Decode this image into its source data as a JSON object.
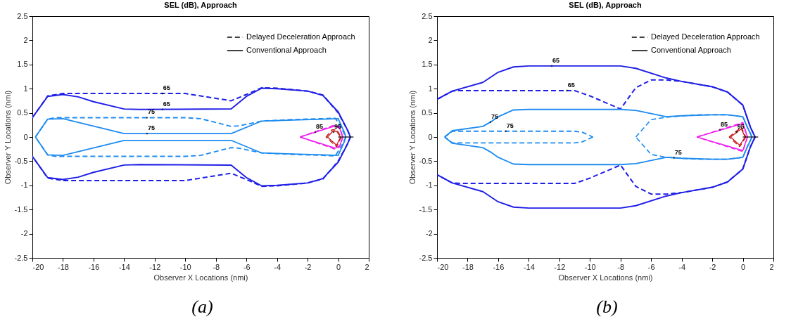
{
  "chart_data": [
    {
      "type": "line",
      "title": "SEL (dB), Approach",
      "xlabel": "Observer X Locations (nmi)",
      "ylabel": "Observer Y Locations (nmi)",
      "xlim": [
        -20,
        2
      ],
      "ylim": [
        -2.5,
        2.5
      ],
      "xticks": [
        -20,
        -18,
        -16,
        -14,
        -12,
        -10,
        -8,
        -6,
        -4,
        -2,
        0,
        2
      ],
      "yticks": [
        -2.5,
        -2,
        -1.5,
        -1,
        -0.5,
        0,
        0.5,
        1,
        1.5,
        2,
        2.5
      ],
      "grid": false,
      "legend": "top right",
      "series": [
        {
          "name": "Delayed Deceleration Approach",
          "color": "#1f1fe6",
          "line_style": "dashed",
          "x": [
            -20,
            -19,
            -18,
            -12,
            -10,
            -9,
            -7,
            -6,
            -5,
            -4,
            -2,
            -1,
            0,
            0.6,
            0.8,
            0.6,
            0,
            -1,
            -2,
            -4,
            -5,
            -6,
            -7,
            -9,
            -10,
            -12,
            -18,
            -19,
            -20
          ],
          "values": [
            0.4,
            0.85,
            0.9,
            0.9,
            0.9,
            0.85,
            0.75,
            0.88,
            1.02,
            1.01,
            0.95,
            0.87,
            0.5,
            0.15,
            0,
            -0.15,
            -0.5,
            -0.87,
            -0.95,
            -1.01,
            -1.02,
            -0.88,
            -0.75,
            -0.85,
            -0.9,
            -0.9,
            -0.9,
            -0.85,
            -0.4
          ]
        },
        {
          "name": "Conventional Approach",
          "color": "#1f1fe6",
          "line_style": "solid",
          "x": [
            -20,
            -19,
            -18,
            -17,
            -16,
            -14,
            -13,
            -7,
            -6,
            -5,
            -4,
            -2,
            -1,
            0,
            0.6,
            0.8,
            0.6,
            0,
            -1,
            -2,
            -4,
            -5,
            -6,
            -7,
            -13,
            -14,
            -16,
            -17,
            -18,
            -19,
            -20
          ],
          "values": [
            0.4,
            0.84,
            0.88,
            0.83,
            0.73,
            0.58,
            0.57,
            0.58,
            0.84,
            1.01,
            1,
            0.95,
            0.86,
            0.52,
            0.15,
            0,
            -0.15,
            -0.52,
            -0.86,
            -0.95,
            -1,
            -1.01,
            -0.84,
            -0.58,
            -0.57,
            -0.58,
            -0.73,
            -0.83,
            -0.88,
            -0.84,
            -0.4
          ]
        },
        {
          "color": "#1e8cf0",
          "line_style": "dashed",
          "x": [
            -19.8,
            -19,
            -18.5,
            -10,
            -9,
            -8,
            -7,
            -6.5,
            -5,
            -3,
            -1,
            -0.2,
            0.2,
            0.5
          ],
          "values": [
            0,
            0.37,
            0.4,
            0.4,
            0.38,
            0.3,
            0.22,
            0.23,
            0.33,
            0.36,
            0.38,
            0.39,
            0.2,
            0
          ]
        },
        {
          "color": "#1e8cf0",
          "line_style": "dashed",
          "x": [
            0.5,
            0.2,
            -0.2,
            -1,
            -3,
            -5,
            -6.5,
            -7,
            -8,
            -9,
            -10,
            -18.5,
            -19,
            -19.8
          ],
          "values": [
            0,
            -0.2,
            -0.39,
            -0.38,
            -0.36,
            -0.33,
            -0.23,
            -0.22,
            -0.3,
            -0.38,
            -0.4,
            -0.4,
            -0.37,
            0
          ]
        },
        {
          "color": "#1e8cf0",
          "line_style": "solid",
          "x": [
            -19.8,
            -19,
            -18,
            -14,
            -7,
            -5,
            -3,
            -1,
            0,
            0.4,
            0.5
          ],
          "values": [
            0,
            0.37,
            0.38,
            0.07,
            0.07,
            0.33,
            0.35,
            0.37,
            0.38,
            0.1,
            0
          ]
        },
        {
          "color": "#1e8cf0",
          "line_style": "solid",
          "x": [
            0.5,
            0.4,
            0,
            -1,
            -3,
            -5,
            -7,
            -14,
            -18,
            -19,
            -19.8
          ],
          "values": [
            0,
            -0.1,
            -0.38,
            -0.37,
            -0.35,
            -0.33,
            -0.07,
            -0.07,
            -0.38,
            -0.37,
            0
          ]
        },
        {
          "color": "#f01ef0",
          "line_style": "dashed",
          "x": [
            -2.5,
            -0.2,
            0.1,
            0.3
          ],
          "values": [
            0,
            0.25,
            0.2,
            0
          ]
        },
        {
          "color": "#f01ef0",
          "line_style": "dashed",
          "x": [
            0.3,
            0.1,
            -0.2,
            -2.5
          ],
          "values": [
            0,
            -0.2,
            -0.25,
            0
          ]
        },
        {
          "color": "#f01ef0",
          "line_style": "solid",
          "x": [
            -2.5,
            -0.2,
            0.1,
            0.3
          ],
          "values": [
            0,
            0.23,
            0.18,
            0
          ]
        },
        {
          "color": "#f01ef0",
          "line_style": "solid",
          "x": [
            0.3,
            0.1,
            -0.2,
            -2.5
          ],
          "values": [
            0,
            -0.18,
            -0.23,
            0
          ]
        },
        {
          "color": "#c81414",
          "line_style": "dashed",
          "x": [
            -0.8,
            -0.4,
            -0.1,
            0.2
          ],
          "values": [
            0,
            0.15,
            0.15,
            0
          ]
        },
        {
          "color": "#c81414",
          "line_style": "dashed",
          "x": [
            0.2,
            -0.1,
            -0.8
          ],
          "values": [
            0,
            -0.2,
            0
          ]
        },
        {
          "color": "#c81414",
          "line_style": "solid",
          "x": [
            -0.7,
            -0.35,
            -0.1,
            0.15
          ],
          "values": [
            0,
            0.12,
            0.12,
            0
          ]
        },
        {
          "color": "#c81414",
          "line_style": "solid",
          "x": [
            0.15,
            -0.1,
            -0.7
          ],
          "values": [
            0,
            -0.17,
            0
          ]
        },
        {
          "color": "#000000",
          "line_style": "solid",
          "x": [
            0,
            1
          ],
          "values": [
            0,
            0
          ]
        }
      ],
      "annotations": [
        {
          "text": "65",
          "x": -11.5,
          "y": 0.9
        },
        {
          "text": "65",
          "x": -11.5,
          "y": 0.57
        },
        {
          "text": "75",
          "x": -12.5,
          "y": 0.4
        },
        {
          "text": "75",
          "x": -12.5,
          "y": 0.07
        },
        {
          "text": "85",
          "x": -1.5,
          "y": 0.1
        },
        {
          "text": "95",
          "x": -0.3,
          "y": 0.1
        },
        "(a)"
      ]
    },
    {
      "type": "line",
      "title": "SEL (dB), Approach",
      "xlabel": "Observer X Locations (nmi)",
      "ylabel": "Observer Y Locations (nmi)",
      "xlim": [
        -20,
        2
      ],
      "ylim": [
        -2.5,
        2.5
      ],
      "xticks": [
        -20,
        -18,
        -16,
        -14,
        -12,
        -10,
        -8,
        -6,
        -4,
        -2,
        0,
        2
      ],
      "yticks": [
        -2.5,
        -2,
        -1.5,
        -1,
        -0.5,
        0,
        0.5,
        1,
        1.5,
        2,
        2.5
      ],
      "grid": false,
      "legend": "top right",
      "series": [
        {
          "name": "Delayed Deceleration Approach",
          "color": "#1f1fe6",
          "line_style": "dashed",
          "x": [
            -20,
            -19,
            -18.5,
            -11,
            -10,
            -8,
            -7,
            -6,
            -5,
            -4,
            -2,
            -1,
            0,
            0.5,
            0.8,
            0.5,
            0,
            -1,
            -2,
            -4,
            -5,
            -6,
            -7,
            -8,
            -10,
            -11,
            -18.5,
            -19,
            -20
          ],
          "values": [
            0.78,
            0.95,
            0.96,
            0.96,
            0.85,
            0.58,
            1.02,
            1.18,
            1.18,
            1.15,
            1.04,
            0.93,
            0.66,
            0.2,
            0,
            -0.2,
            -0.66,
            -0.93,
            -1.04,
            -1.15,
            -1.18,
            -1.18,
            -1.02,
            -0.58,
            -0.85,
            -0.96,
            -0.96,
            -0.95,
            -0.78
          ]
        },
        {
          "name": "Conventional Approach",
          "color": "#1f1fe6",
          "line_style": "solid",
          "x": [
            -20,
            -19,
            -17,
            -16,
            -15,
            -14,
            -8,
            -7,
            -5,
            -4,
            -2,
            -1,
            0,
            0.5,
            0.8,
            0.5,
            0,
            -1,
            -2,
            -4,
            -5,
            -7,
            -8,
            -14,
            -15,
            -16,
            -17,
            -19,
            -20
          ],
          "values": [
            0.78,
            0.95,
            1.13,
            1.34,
            1.45,
            1.47,
            1.47,
            1.42,
            1.22,
            1.15,
            1.04,
            0.93,
            0.66,
            0.2,
            0,
            -0.2,
            -0.66,
            -0.93,
            -1.04,
            -1.15,
            -1.22,
            -1.42,
            -1.47,
            -1.47,
            -1.45,
            -1.34,
            -1.13,
            -0.95,
            -0.78
          ]
        },
        {
          "color": "#1e8cf0",
          "line_style": "solid",
          "x": [
            -19.5,
            -19,
            -17,
            -16.5,
            -16,
            -15,
            -14,
            -8,
            -7,
            -5,
            -4,
            -2,
            -1,
            0,
            0.3,
            0.6
          ],
          "values": [
            0,
            0.13,
            0.22,
            0.31,
            0.42,
            0.56,
            0.57,
            0.57,
            0.55,
            0.42,
            0.44,
            0.46,
            0.46,
            0.42,
            0.2,
            0
          ]
        },
        {
          "color": "#1e8cf0",
          "line_style": "solid",
          "x": [
            0.6,
            0.3,
            0,
            -1,
            -2,
            -4,
            -5,
            -7,
            -8,
            -14,
            -15,
            -16,
            -16.5,
            -17,
            -19,
            -19.5
          ],
          "values": [
            0,
            -0.2,
            -0.42,
            -0.46,
            -0.46,
            -0.44,
            -0.42,
            -0.55,
            -0.57,
            -0.57,
            -0.56,
            -0.42,
            -0.31,
            -0.22,
            -0.13,
            0
          ]
        },
        {
          "color": "#1e8cf0",
          "line_style": "dashed",
          "x": [
            -19.5,
            -19,
            -11,
            -10.5,
            -9.8
          ],
          "values": [
            0,
            0.12,
            0.12,
            0.1,
            0
          ]
        },
        {
          "color": "#1e8cf0",
          "line_style": "dashed",
          "x": [
            -9.8,
            -10.5,
            -11,
            -19,
            -19.5
          ],
          "values": [
            0,
            -0.1,
            -0.12,
            -0.12,
            0
          ]
        },
        {
          "color": "#1e8cf0",
          "line_style": "dashed",
          "x": [
            -7,
            -6,
            -5,
            -3,
            -1,
            0,
            0.3,
            0.6
          ],
          "values": [
            0,
            0.36,
            0.41,
            0.46,
            0.46,
            0.42,
            0.2,
            0
          ]
        },
        {
          "color": "#1e8cf0",
          "line_style": "dashed",
          "x": [
            0.6,
            0.3,
            0,
            -1,
            -3,
            -5,
            -6,
            -7
          ],
          "values": [
            0,
            -0.2,
            -0.42,
            -0.46,
            -0.46,
            -0.42,
            -0.36,
            0
          ]
        },
        {
          "color": "#f01ef0",
          "line_style": "dashed",
          "x": [
            -3,
            0,
            0.3
          ],
          "values": [
            0,
            0.3,
            0
          ]
        },
        {
          "color": "#f01ef0",
          "line_style": "dashed",
          "x": [
            0.3,
            0,
            -3
          ],
          "values": [
            0,
            -0.3,
            0
          ]
        },
        {
          "color": "#f01ef0",
          "line_style": "solid",
          "x": [
            -3,
            0,
            0.3
          ],
          "values": [
            0,
            0.28,
            0
          ]
        },
        {
          "color": "#f01ef0",
          "line_style": "solid",
          "x": [
            0.3,
            0,
            -3
          ],
          "values": [
            0,
            -0.28,
            0
          ]
        },
        {
          "color": "#c81414",
          "line_style": "dashed",
          "x": [
            -0.9,
            -0.1,
            0.2
          ],
          "values": [
            0,
            0.2,
            0
          ]
        },
        {
          "color": "#c81414",
          "line_style": "dashed",
          "x": [
            0.2,
            -0.2,
            -0.9
          ],
          "values": [
            0,
            -0.2,
            0
          ]
        },
        {
          "color": "#c81414",
          "line_style": "solid",
          "x": [
            -0.8,
            -0.1,
            0.15
          ],
          "values": [
            0,
            0.17,
            0
          ]
        },
        {
          "color": "#c81414",
          "line_style": "solid",
          "x": [
            0.15,
            -0.2,
            -0.8
          ],
          "values": [
            0,
            -0.17,
            0
          ]
        },
        {
          "color": "#000000",
          "line_style": "solid",
          "x": [
            0,
            1
          ],
          "values": [
            0,
            0
          ]
        }
      ],
      "annotations": [
        {
          "text": "65",
          "x": -12.5,
          "y": 1.47
        },
        {
          "text": "65",
          "x": -11.5,
          "y": 0.96
        },
        {
          "text": "75",
          "x": -16.5,
          "y": 0.31
        },
        {
          "text": "75",
          "x": -15.5,
          "y": 0.12
        },
        {
          "text": "75",
          "x": -4.5,
          "y": -0.43
        },
        {
          "text": "85",
          "x": -1.5,
          "y": 0.15
        },
        {
          "text": "95",
          "x": -0.4,
          "y": 0.1
        },
        "(b)"
      ]
    }
  ]
}
